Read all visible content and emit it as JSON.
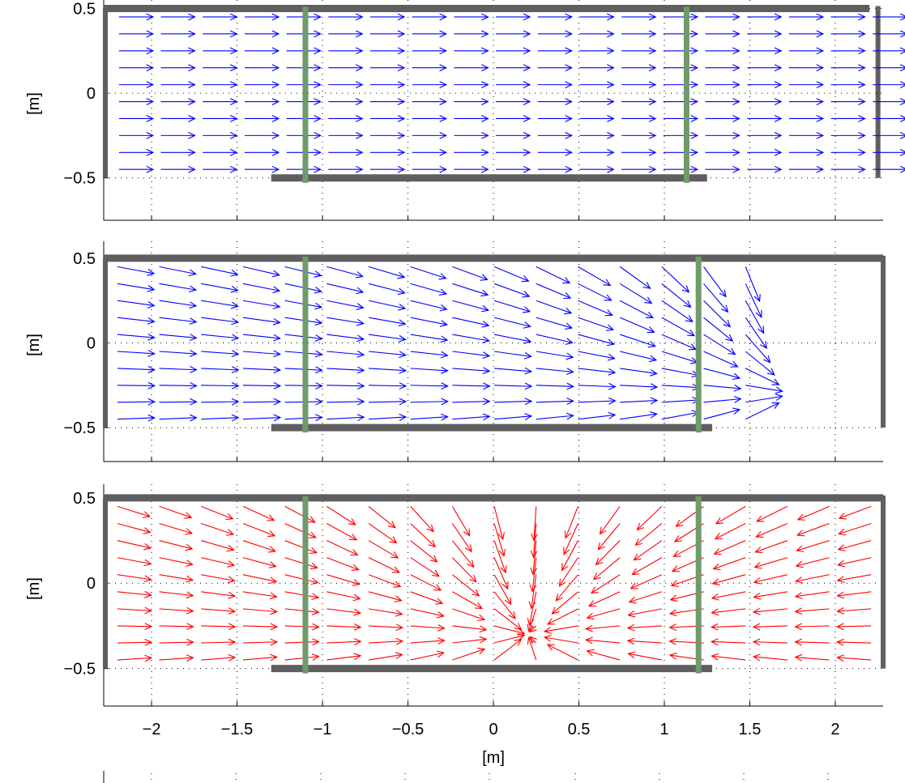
{
  "chart_data": [
    {
      "type": "quiver",
      "panel": "top",
      "ylabel": "[m]",
      "xlabel": "",
      "xlim": [
        -2.28,
        2.28
      ],
      "ylim": [
        -0.75,
        0.55
      ],
      "yticks": [
        -0.5,
        0,
        0.5
      ],
      "ytick_labels": [
        "−0.5",
        "0",
        "0.5"
      ],
      "grid": true,
      "field": "uniform",
      "arrow_color": "#0000ff",
      "walls": {
        "top": [
          -2.28,
          2.2,
          0.5
        ],
        "bottom": [
          -1.3,
          1.25,
          -0.5
        ],
        "left": [
          -2.28,
          -0.5,
          0.5
        ],
        "right": [
          2.25,
          -0.5,
          0.5
        ]
      },
      "barriers": [
        -1.1,
        1.13
      ]
    },
    {
      "type": "quiver",
      "panel": "middle",
      "ylabel": "[m]",
      "xlabel": "",
      "xlim": [
        -2.28,
        2.28
      ],
      "ylim": [
        -0.7,
        0.6
      ],
      "yticks": [
        -0.5,
        0,
        0.5
      ],
      "ytick_labels": [
        "−0.5",
        "0",
        "0.5"
      ],
      "grid": true,
      "field": "sink",
      "sink_point": [
        1.78,
        -0.3
      ],
      "arrow_color": "#0000ff",
      "walls": {
        "top": [
          -2.28,
          2.28,
          0.5
        ],
        "bottom": [
          -1.3,
          1.28,
          -0.5
        ],
        "left": [
          -2.28,
          -0.5,
          0.5
        ],
        "right": [
          2.28,
          -0.5,
          0.5
        ]
      },
      "barriers": [
        -1.1,
        1.2
      ]
    },
    {
      "type": "quiver",
      "panel": "bottom",
      "ylabel": "[m]",
      "xlabel": "[m]",
      "xlim": [
        -2.28,
        2.28
      ],
      "ylim": [
        -0.72,
        0.58
      ],
      "xticks": [
        -2,
        -1.5,
        -1,
        -0.5,
        0,
        0.5,
        1,
        1.5,
        2
      ],
      "xtick_labels": [
        "−2",
        "−1.5",
        "−1",
        "−0.5",
        "0",
        "0.5",
        "1",
        "1.5",
        "2"
      ],
      "yticks": [
        -0.5,
        0,
        0.5
      ],
      "ytick_labels": [
        "−0.5",
        "0",
        "0.5"
      ],
      "grid": true,
      "field": "sink",
      "sink_point": [
        0.2,
        -0.3
      ],
      "arrow_color": "#ff0000",
      "walls": {
        "top": [
          -2.28,
          2.28,
          0.5
        ],
        "bottom": [
          -1.3,
          1.28,
          -0.5
        ],
        "left": [
          -2.28,
          -0.5,
          0.5
        ],
        "right": [
          2.28,
          -0.5,
          0.5
        ]
      },
      "barriers": [
        -1.1,
        1.2
      ]
    }
  ],
  "colors": {
    "wall": "#5f5f5f",
    "barrier": "#6f9a6a",
    "grid": "#000000"
  }
}
